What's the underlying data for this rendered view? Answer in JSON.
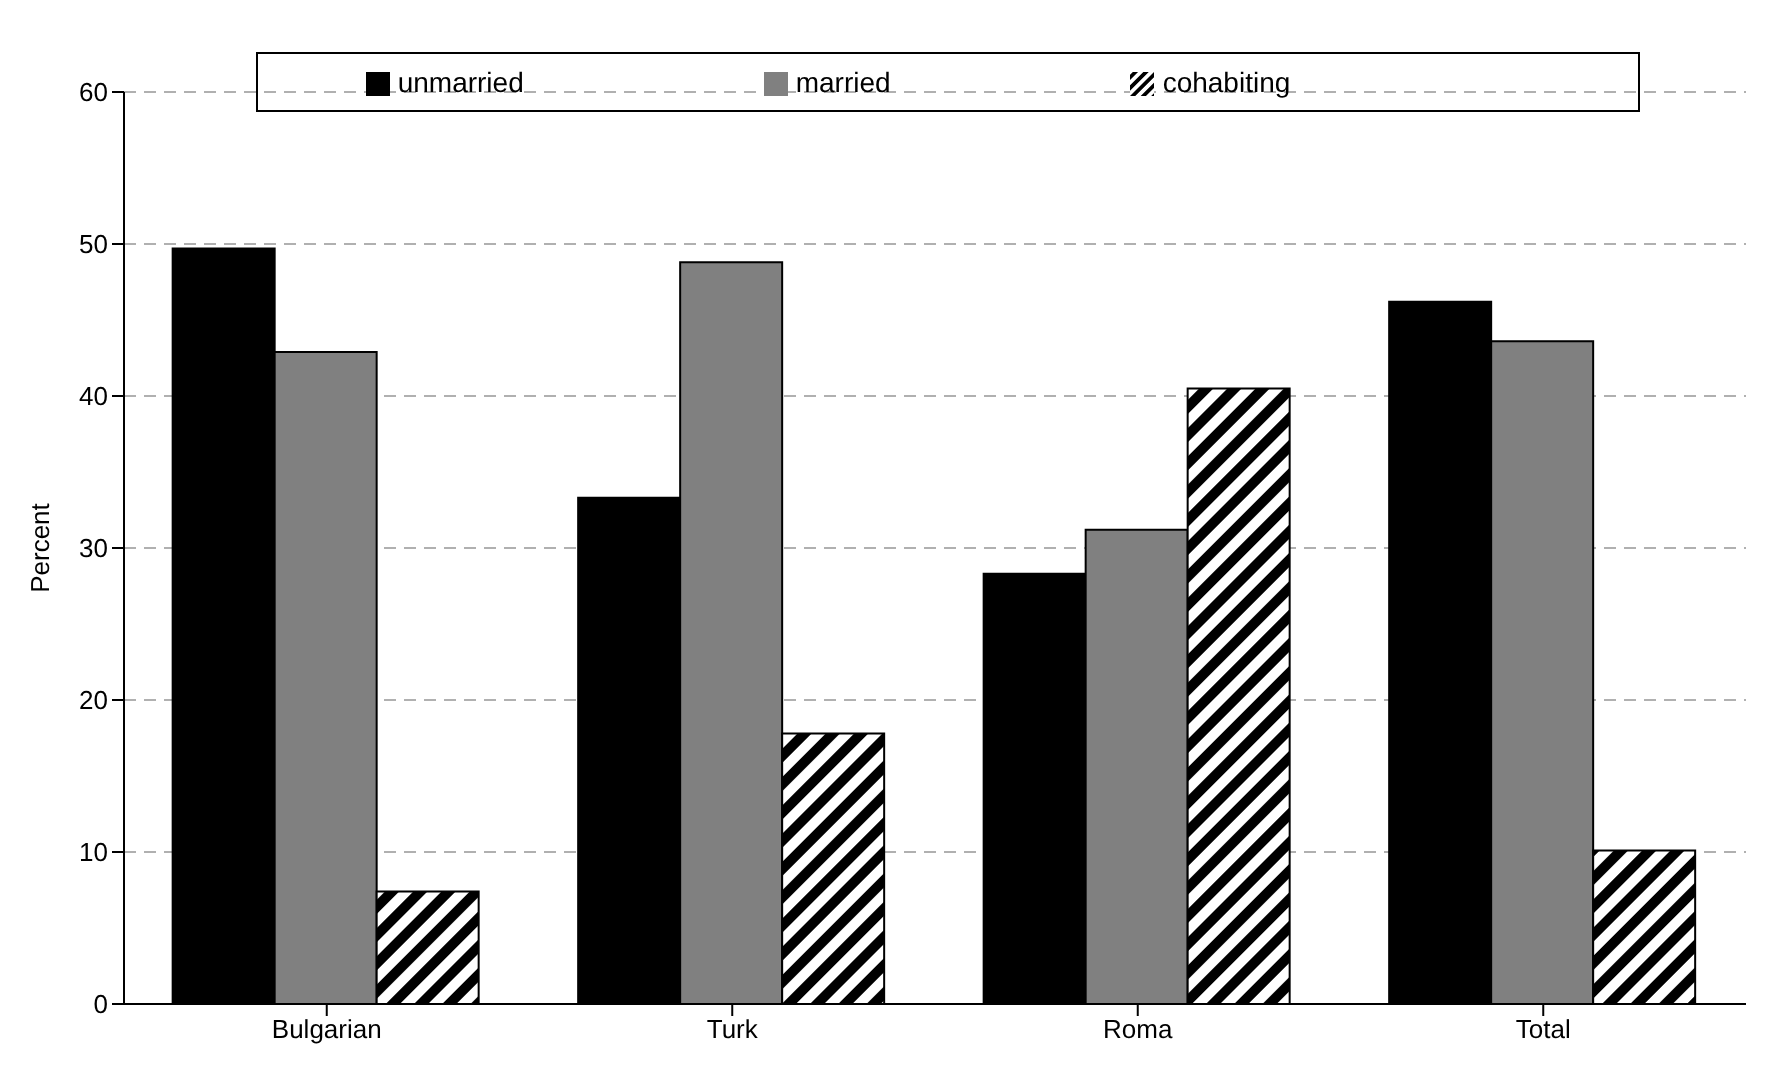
{
  "chart_data": {
    "type": "bar",
    "ylabel": "Percent",
    "categories": [
      "Bulgarian",
      "Turk",
      "Roma",
      "Total"
    ],
    "series": [
      {
        "name": "unmarried",
        "color": "#000000",
        "values": [
          49.7,
          33.3,
          28.3,
          46.2
        ]
      },
      {
        "name": "married",
        "color": "#808080",
        "values": [
          42.9,
          48.8,
          31.2,
          43.6
        ]
      },
      {
        "name": "cohabiting",
        "color": "#000000",
        "values": [
          7.4,
          17.8,
          40.5,
          10.1
        ]
      }
    ],
    "ylim": [
      0,
      60
    ],
    "yticks": [
      0,
      10,
      20,
      30,
      40,
      50,
      60
    ],
    "grid": "y",
    "legend": "top"
  }
}
